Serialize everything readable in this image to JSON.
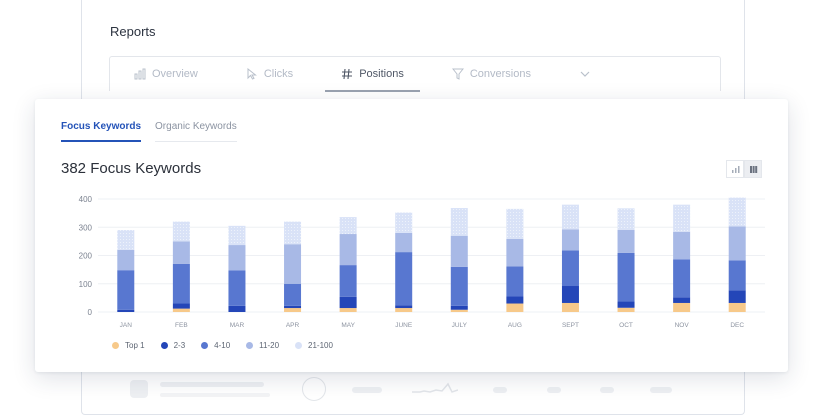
{
  "background_window": {
    "title": "Reports",
    "tabs": [
      {
        "label": "Overview",
        "icon": "bar-chart-icon"
      },
      {
        "label": "Clicks",
        "icon": "cursor-icon"
      },
      {
        "label": "Positions",
        "icon": "hash-icon",
        "active": true
      },
      {
        "label": "Conversions",
        "icon": "filter-icon"
      }
    ]
  },
  "card": {
    "tabs": [
      {
        "label": "Focus Keywords",
        "active": true
      },
      {
        "label": "Organic Keywords",
        "active": false
      }
    ],
    "headline": "382 Focus Keywords",
    "view_toggle": [
      "bar-chart-icon",
      "stacked-columns-icon"
    ]
  },
  "colors": {
    "top1": "#f7c98a",
    "2-3": "#2446b8",
    "4-10": "#5877d0",
    "11-20": "#a8b9e6",
    "21-100": "#d9e2f7",
    "accent": "#2453b8"
  },
  "chart_data": {
    "type": "bar",
    "stacked": true,
    "categories": [
      "JAN",
      "FEB",
      "MAR",
      "APR",
      "MAY",
      "JUNE",
      "JULY",
      "AUG",
      "SEPT",
      "OCT",
      "NOV",
      "DEC"
    ],
    "ylim": [
      0,
      400
    ],
    "yticks": [
      0,
      100,
      200,
      300,
      400
    ],
    "grid": true,
    "legend_position": "bottom-left",
    "series": [
      {
        "name": "Top 1",
        "key": "top1",
        "values": [
          0,
          12,
          0,
          14,
          14,
          14,
          8,
          30,
          32,
          15,
          32,
          32
        ]
      },
      {
        "name": "2-3",
        "key": "2-3",
        "values": [
          8,
          18,
          22,
          8,
          40,
          10,
          14,
          25,
          60,
          22,
          20,
          45
        ]
      },
      {
        "name": "4-10",
        "key": "4-10",
        "values": [
          140,
          140,
          125,
          78,
          112,
          188,
          138,
          106,
          126,
          172,
          134,
          106
        ]
      },
      {
        "name": "11-20",
        "key": "11-20",
        "values": [
          72,
          80,
          90,
          140,
          110,
          68,
          110,
          98,
          74,
          82,
          98,
          120
        ]
      },
      {
        "name": "21-100",
        "key": "21-100",
        "values": [
          70,
          70,
          68,
          80,
          60,
          72,
          98,
          106,
          88,
          76,
          96,
          102
        ]
      }
    ]
  }
}
